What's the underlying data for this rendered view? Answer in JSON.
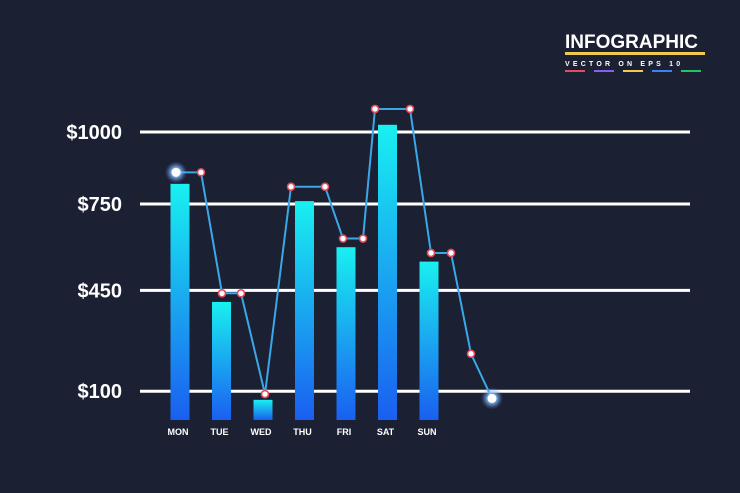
{
  "logo": {
    "title": "INFOGRAPHIC",
    "subtitle": "VECTOR ON EPS 10",
    "underline_color": "#f2c94c",
    "stripe_colors": [
      "#e14b5a",
      "#8a5cf6",
      "#f2c94c",
      "#3b82f6",
      "#22c55e"
    ]
  },
  "colors": {
    "background": "#1c2033",
    "bar_top": "#19f0f0",
    "bar_bottom": "#1a5ff0",
    "line": "#3aa8e8",
    "marker_fill": "#ffffff",
    "marker_stroke": "#e24a5a",
    "gridline": "#ffffff"
  },
  "chart_data": {
    "type": "bar",
    "categories": [
      "MON",
      "TUE",
      "WED",
      "THU",
      "FRI",
      "SAT",
      "SUN"
    ],
    "values": [
      820,
      410,
      70,
      760,
      600,
      1025,
      550
    ],
    "ylim": [
      0,
      1110
    ],
    "yticks": [
      {
        "label": "$1000",
        "value": 1000
      },
      {
        "label": "$750",
        "value": 750
      },
      {
        "label": "$450",
        "value": 450
      },
      {
        "label": "$100",
        "value": 100
      }
    ],
    "grid": true,
    "line_series": {
      "points": [
        {
          "value": 860,
          "glow": true
        },
        {
          "value": 860
        },
        {
          "value": 440
        },
        {
          "value": 440
        },
        {
          "value": 90
        },
        {
          "value": 810
        },
        {
          "value": 810
        },
        {
          "value": 630
        },
        {
          "value": 630
        },
        {
          "value": 1080
        },
        {
          "value": 1080
        },
        {
          "value": 580
        },
        {
          "value": 580
        },
        {
          "value": 230
        },
        {
          "value": 75,
          "glow": true
        }
      ]
    }
  }
}
